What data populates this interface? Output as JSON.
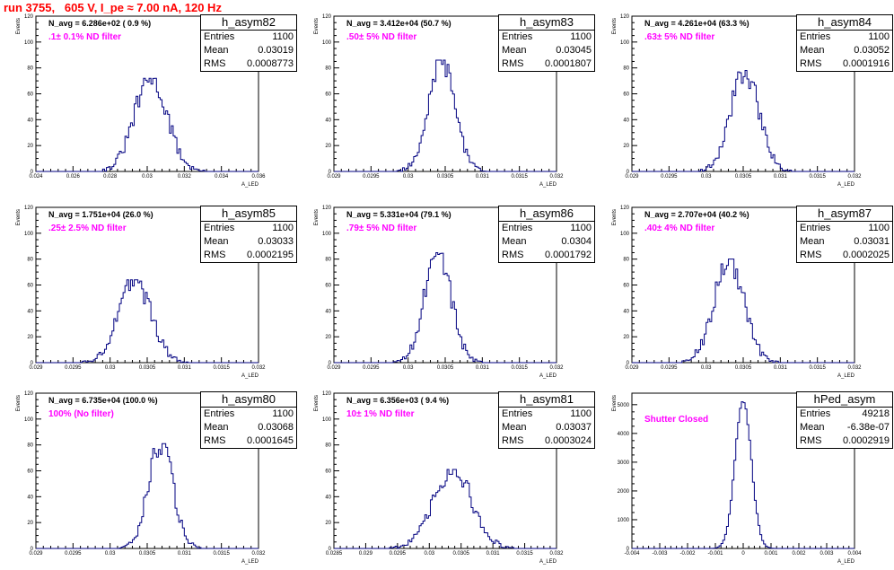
{
  "title": "run 3755,   605 V, I_pe ≈ 7.00 nA, 120 Hz",
  "colors": {
    "title": "#ff0000",
    "filter_text": "#ff00ff",
    "histogram_line": "#000080",
    "frame": "#000000"
  },
  "ylabel": "Events",
  "xlabel": "A_LED",
  "stat_labels": {
    "entries": "Entries",
    "mean": "Mean",
    "rms": "RMS"
  },
  "panels": [
    {
      "name": "h_asym82",
      "entries": "1100",
      "mean": "0.03019",
      "rms": "0.0008773",
      "n_avg": "N_avg = 6.286e+02 ( 0.9 %)",
      "filter": ".1± 0.1% ND filter"
    },
    {
      "name": "h_asym83",
      "entries": "1100",
      "mean": "0.03045",
      "rms": "0.0001807",
      "n_avg": "N_avg = 3.412e+04 (50.7 %)",
      "filter": ".50± 5% ND filter"
    },
    {
      "name": "h_asym84",
      "entries": "1100",
      "mean": "0.03052",
      "rms": "0.0001916",
      "n_avg": "N_avg = 4.261e+04 (63.3 %)",
      "filter": ".63± 5% ND filter"
    },
    {
      "name": "h_asym85",
      "entries": "1100",
      "mean": "0.03033",
      "rms": "0.0002195",
      "n_avg": "N_avg = 1.751e+04 (26.0 %)",
      "filter": ".25± 2.5% ND filter"
    },
    {
      "name": "h_asym86",
      "entries": "1100",
      "mean": "0.0304",
      "rms": "0.0001792",
      "n_avg": "N_avg = 5.331e+04 (79.1 %)",
      "filter": ".79± 5% ND filter"
    },
    {
      "name": "h_asym87",
      "entries": "1100",
      "mean": "0.03031",
      "rms": "0.0002025",
      "n_avg": "N_avg = 2.707e+04 (40.2 %)",
      "filter": ".40± 4% ND filter"
    },
    {
      "name": "h_asym80",
      "entries": "1100",
      "mean": "0.03068",
      "rms": "0.0001645",
      "n_avg": "N_avg = 6.735e+04 (100.0 %)",
      "filter": "100% (No filter)"
    },
    {
      "name": "h_asym81",
      "entries": "1100",
      "mean": "0.03037",
      "rms": "0.0003024",
      "n_avg": "N_avg = 6.356e+03 ( 9.4 %)",
      "filter": "10± 1% ND filter"
    },
    {
      "name": "hPed_asym",
      "entries": "49218",
      "mean": "-6.38e-07",
      "rms": "0.0002919",
      "n_avg": "",
      "filter": "Shutter Closed"
    }
  ],
  "chart_data": [
    {
      "type": "histogram",
      "title": "h_asym82",
      "ylabel": "Events",
      "xlabel": "A_LED",
      "xlim": [
        0.024,
        0.036
      ],
      "ylim": [
        0,
        120
      ],
      "xticks": [
        "0.024",
        "0.026",
        "0.028",
        "0.03",
        "0.032",
        "0.034",
        "0.036"
      ],
      "yticks": [
        "0",
        "20",
        "40",
        "60",
        "80",
        "100",
        "120"
      ],
      "mean": 0.03019,
      "rms": 0.0008773,
      "peak": 72,
      "entries": 1100
    },
    {
      "type": "histogram",
      "title": "h_asym83",
      "ylabel": "Events",
      "xlabel": "A_LED",
      "xlim": [
        0.029,
        0.032
      ],
      "ylim": [
        0,
        120
      ],
      "xticks": [
        "0.029",
        "0.0295",
        "0.03",
        "0.0305",
        "0.031",
        "0.0315",
        "0.032"
      ],
      "yticks": [
        "0",
        "20",
        "40",
        "60",
        "80",
        "100",
        "120"
      ],
      "mean": 0.03045,
      "rms": 0.0001807,
      "peak": 86,
      "entries": 1100
    },
    {
      "type": "histogram",
      "title": "h_asym84",
      "ylabel": "Events",
      "xlabel": "A_LED",
      "xlim": [
        0.029,
        0.032
      ],
      "ylim": [
        0,
        120
      ],
      "xticks": [
        "0.029",
        "0.0295",
        "0.03",
        "0.0305",
        "0.031",
        "0.0315",
        "0.032"
      ],
      "yticks": [
        "0",
        "20",
        "40",
        "60",
        "80",
        "100",
        "120"
      ],
      "mean": 0.03052,
      "rms": 0.0001916,
      "peak": 78,
      "entries": 1100
    },
    {
      "type": "histogram",
      "title": "h_asym85",
      "ylabel": "Events",
      "xlabel": "A_LED",
      "xlim": [
        0.029,
        0.032
      ],
      "ylim": [
        0,
        120
      ],
      "xticks": [
        "0.029",
        "0.0295",
        "0.03",
        "0.0305",
        "0.031",
        "0.0315",
        "0.032"
      ],
      "yticks": [
        "0",
        "20",
        "40",
        "60",
        "80",
        "100",
        "120"
      ],
      "mean": 0.03033,
      "rms": 0.0002195,
      "peak": 64,
      "entries": 1100
    },
    {
      "type": "histogram",
      "title": "h_asym86",
      "ylabel": "Events",
      "xlabel": "A_LED",
      "xlim": [
        0.029,
        0.032
      ],
      "ylim": [
        0,
        120
      ],
      "xticks": [
        "0.029",
        "0.0295",
        "0.03",
        "0.0305",
        "0.031",
        "0.0315",
        "0.032"
      ],
      "yticks": [
        "0",
        "20",
        "40",
        "60",
        "80",
        "100",
        "120"
      ],
      "mean": 0.0304,
      "rms": 0.0001792,
      "peak": 85,
      "entries": 1100
    },
    {
      "type": "histogram",
      "title": "h_asym87",
      "ylabel": "Events",
      "xlabel": "A_LED",
      "xlim": [
        0.029,
        0.032
      ],
      "ylim": [
        0,
        120
      ],
      "xticks": [
        "0.029",
        "0.0295",
        "0.03",
        "0.0305",
        "0.031",
        "0.0315",
        "0.032"
      ],
      "yticks": [
        "0",
        "20",
        "40",
        "60",
        "80",
        "100",
        "120"
      ],
      "mean": 0.03031,
      "rms": 0.0002025,
      "peak": 80,
      "entries": 1100
    },
    {
      "type": "histogram",
      "title": "h_asym80",
      "ylabel": "Events",
      "xlabel": "A_LED",
      "xlim": [
        0.029,
        0.032
      ],
      "ylim": [
        0,
        120
      ],
      "xticks": [
        "0.029",
        "0.0295",
        "0.03",
        "0.0305",
        "0.031",
        "0.0315",
        "0.032"
      ],
      "yticks": [
        "0",
        "20",
        "40",
        "60",
        "80",
        "100",
        "120"
      ],
      "mean": 0.03068,
      "rms": 0.0001645,
      "peak": 81,
      "entries": 1100
    },
    {
      "type": "histogram",
      "title": "h_asym81",
      "ylabel": "Events",
      "xlabel": "A_LED",
      "xlim": [
        0.0285,
        0.032
      ],
      "ylim": [
        0,
        120
      ],
      "xticks": [
        "0.0285",
        "0.029",
        "0.0295",
        "0.03",
        "0.0305",
        "0.031",
        "0.0315",
        "0.032"
      ],
      "yticks": [
        "0",
        "20",
        "40",
        "60",
        "80",
        "100",
        "120"
      ],
      "mean": 0.03037,
      "rms": 0.0003024,
      "peak": 61,
      "entries": 1100
    },
    {
      "type": "histogram",
      "title": "hPed_asym",
      "ylabel": "Events",
      "xlabel": "A_LED",
      "xlim": [
        -0.004,
        0.004
      ],
      "ylim": [
        0,
        5400
      ],
      "xticks": [
        "-0.004",
        "-0.003",
        "-0.002",
        "-0.001",
        "0",
        "0.001",
        "0.002",
        "0.003",
        "0.004"
      ],
      "yticks": [
        "0",
        "1000",
        "2000",
        "3000",
        "4000",
        "5000"
      ],
      "mean": -6.38e-07,
      "rms": 0.0002919,
      "peak": 5150,
      "entries": 49218
    }
  ]
}
